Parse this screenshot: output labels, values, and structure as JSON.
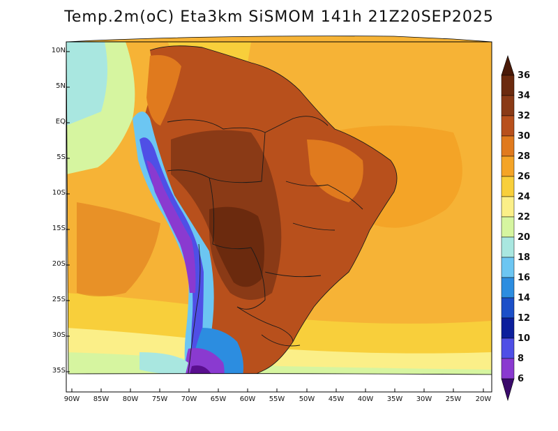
{
  "title": "Temp.2m(oC) Eta3km SiSMOM 141h 21Z20SEP2025",
  "map": {
    "lat_labels": [
      "10N",
      "5N",
      "EQ",
      "5S",
      "10S",
      "15S",
      "20S",
      "25S",
      "30S",
      "35S"
    ],
    "lon_labels": [
      "90W",
      "85W",
      "80W",
      "75W",
      "70W",
      "65W",
      "60W",
      "55W",
      "50W",
      "45W",
      "40W",
      "35W",
      "30W",
      "25W",
      "20W"
    ]
  },
  "colorbar": {
    "labels": [
      "36",
      "34",
      "32",
      "30",
      "28",
      "26",
      "24",
      "22",
      "20",
      "18",
      "16",
      "14",
      "12",
      "10",
      "8",
      "6"
    ],
    "colors": [
      "#6b2a0e",
      "#8a3a16",
      "#b8501c",
      "#e07a1e",
      "#f4a427",
      "#f8cf3b",
      "#fbef88",
      "#d6f5a0",
      "#a9e7e0",
      "#6cc6f2",
      "#2c8de0",
      "#1b4fc8",
      "#0c1f9c",
      "#4f4fe6",
      "#8a3ad0",
      "#5a0f8f"
    ],
    "units": "oC"
  }
}
